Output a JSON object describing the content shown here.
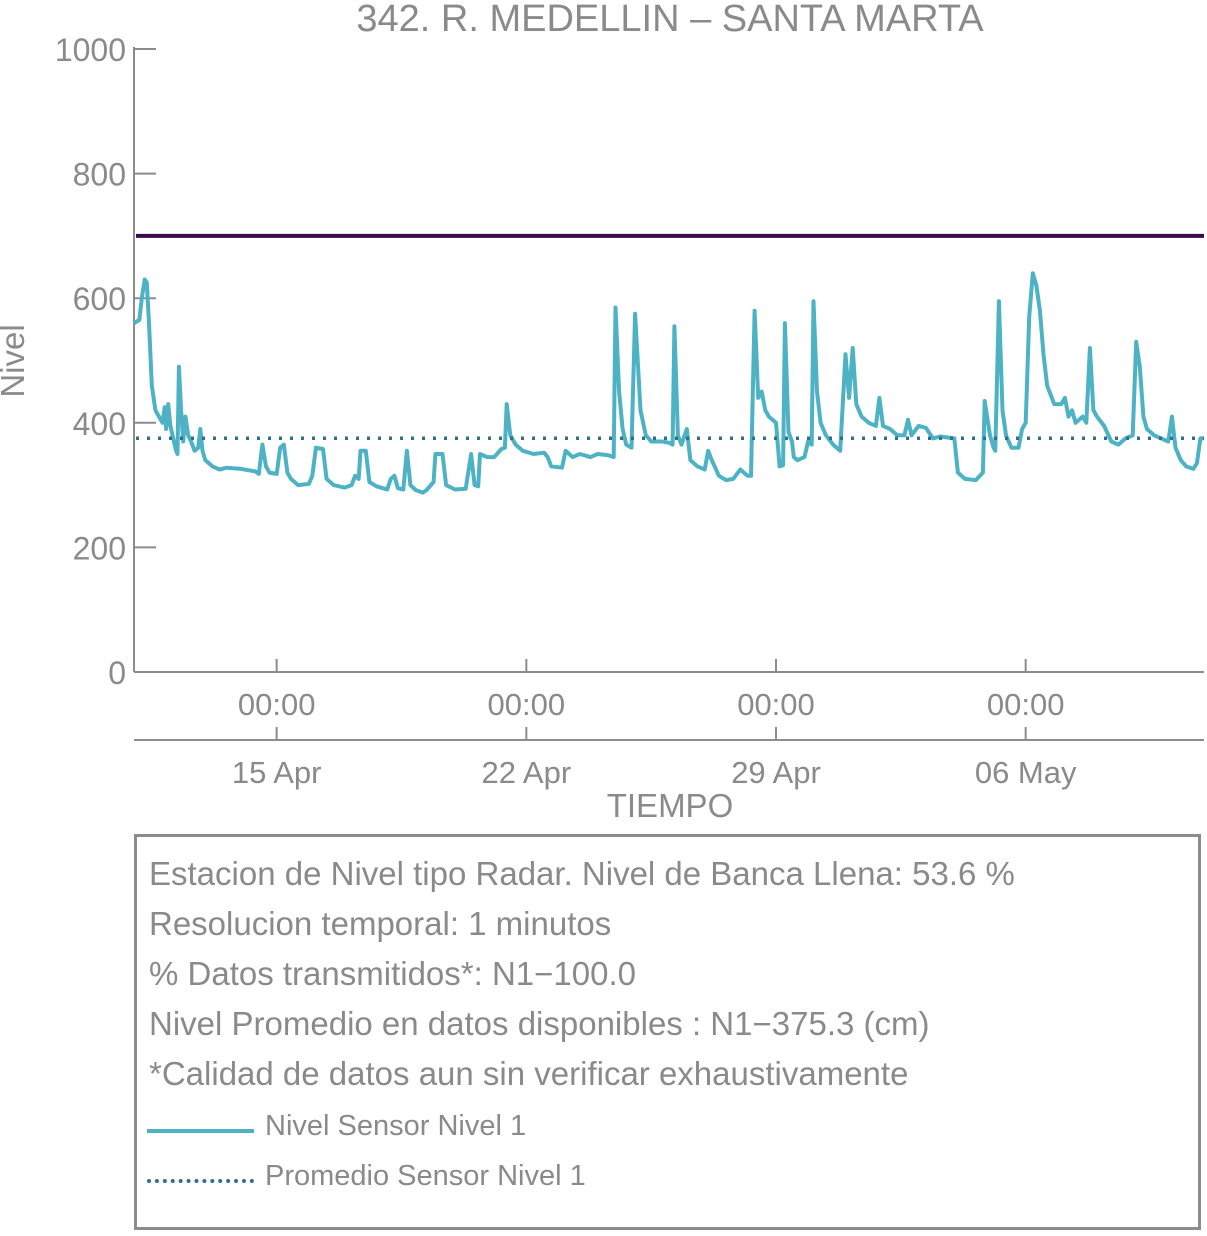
{
  "chart_data": {
    "type": "line",
    "title": "342. R. MEDELLIN – SANTA MARTA",
    "xlabel": "TIEMPO",
    "ylabel": "Nivel",
    "ylim": [
      0,
      1000
    ],
    "yticks": [
      "0",
      "200",
      "400",
      "600",
      "800",
      "1000"
    ],
    "xlim_days": [
      0,
      30
    ],
    "x_time_ticks": [
      {
        "day": 4,
        "label": "00:00"
      },
      {
        "day": 11,
        "label": "00:00"
      },
      {
        "day": 18,
        "label": "00:00"
      },
      {
        "day": 25,
        "label": "00:00"
      }
    ],
    "x_date_ticks": [
      {
        "day": 4,
        "label": "15 Apr"
      },
      {
        "day": 11,
        "label": "22 Apr"
      },
      {
        "day": 18,
        "label": "29 Apr"
      },
      {
        "day": 25,
        "label": "06 May"
      }
    ],
    "bankfull_level": 700,
    "bankfull_color": "#3d0a4f",
    "series": [
      {
        "name": "Nivel Sensor Nivel 1",
        "style": "solid",
        "color": "#4db3c4",
        "points": [
          [
            0.0,
            560
          ],
          [
            0.15,
            565
          ],
          [
            0.22,
            600
          ],
          [
            0.3,
            630
          ],
          [
            0.36,
            625
          ],
          [
            0.42,
            560
          ],
          [
            0.5,
            460
          ],
          [
            0.6,
            420
          ],
          [
            0.7,
            410
          ],
          [
            0.8,
            400
          ],
          [
            0.86,
            425
          ],
          [
            0.9,
            390
          ],
          [
            0.96,
            430
          ],
          [
            1.02,
            395
          ],
          [
            1.1,
            375
          ],
          [
            1.18,
            355
          ],
          [
            1.22,
            350
          ],
          [
            1.26,
            490
          ],
          [
            1.32,
            420
          ],
          [
            1.38,
            370
          ],
          [
            1.44,
            410
          ],
          [
            1.52,
            380
          ],
          [
            1.6,
            370
          ],
          [
            1.7,
            355
          ],
          [
            1.8,
            360
          ],
          [
            1.86,
            390
          ],
          [
            1.92,
            355
          ],
          [
            2.0,
            340
          ],
          [
            2.2,
            330
          ],
          [
            2.4,
            325
          ],
          [
            2.6,
            328
          ],
          [
            3.0,
            326
          ],
          [
            3.4,
            322
          ],
          [
            3.5,
            318
          ],
          [
            3.6,
            365
          ],
          [
            3.7,
            330
          ],
          [
            3.8,
            320
          ],
          [
            4.0,
            318
          ],
          [
            4.1,
            360
          ],
          [
            4.2,
            365
          ],
          [
            4.3,
            320
          ],
          [
            4.4,
            310
          ],
          [
            4.6,
            300
          ],
          [
            4.9,
            302
          ],
          [
            5.0,
            315
          ],
          [
            5.1,
            360
          ],
          [
            5.3,
            358
          ],
          [
            5.4,
            310
          ],
          [
            5.6,
            300
          ],
          [
            5.9,
            296
          ],
          [
            6.1,
            300
          ],
          [
            6.2,
            315
          ],
          [
            6.3,
            310
          ],
          [
            6.35,
            355
          ],
          [
            6.5,
            355
          ],
          [
            6.6,
            305
          ],
          [
            6.8,
            298
          ],
          [
            7.1,
            293
          ],
          [
            7.2,
            310
          ],
          [
            7.3,
            315
          ],
          [
            7.4,
            295
          ],
          [
            7.55,
            293
          ],
          [
            7.65,
            355
          ],
          [
            7.75,
            300
          ],
          [
            7.9,
            292
          ],
          [
            8.1,
            288
          ],
          [
            8.2,
            292
          ],
          [
            8.4,
            305
          ],
          [
            8.45,
            350
          ],
          [
            8.65,
            350
          ],
          [
            8.75,
            300
          ],
          [
            9.0,
            293
          ],
          [
            9.3,
            294
          ],
          [
            9.45,
            350
          ],
          [
            9.55,
            300
          ],
          [
            9.65,
            298
          ],
          [
            9.7,
            350
          ],
          [
            9.9,
            345
          ],
          [
            10.1,
            345
          ],
          [
            10.3,
            358
          ],
          [
            10.4,
            360
          ],
          [
            10.45,
            430
          ],
          [
            10.55,
            380
          ],
          [
            10.7,
            365
          ],
          [
            10.9,
            355
          ],
          [
            11.2,
            350
          ],
          [
            11.5,
            352
          ],
          [
            11.6,
            345
          ],
          [
            11.7,
            330
          ],
          [
            12.0,
            328
          ],
          [
            12.1,
            355
          ],
          [
            12.3,
            345
          ],
          [
            12.5,
            350
          ],
          [
            12.8,
            345
          ],
          [
            13.0,
            350
          ],
          [
            13.3,
            348
          ],
          [
            13.45,
            345
          ],
          [
            13.5,
            585
          ],
          [
            13.6,
            450
          ],
          [
            13.7,
            390
          ],
          [
            13.8,
            365
          ],
          [
            13.95,
            360
          ],
          [
            14.05,
            575
          ],
          [
            14.2,
            420
          ],
          [
            14.35,
            380
          ],
          [
            14.5,
            370
          ],
          [
            14.8,
            370
          ],
          [
            15.0,
            368
          ],
          [
            15.1,
            365
          ],
          [
            15.15,
            555
          ],
          [
            15.25,
            380
          ],
          [
            15.35,
            365
          ],
          [
            15.5,
            390
          ],
          [
            15.6,
            340
          ],
          [
            15.8,
            330
          ],
          [
            16.0,
            325
          ],
          [
            16.1,
            355
          ],
          [
            16.2,
            340
          ],
          [
            16.4,
            315
          ],
          [
            16.6,
            308
          ],
          [
            16.8,
            310
          ],
          [
            17.0,
            325
          ],
          [
            17.2,
            315
          ],
          [
            17.3,
            315
          ],
          [
            17.4,
            580
          ],
          [
            17.5,
            440
          ],
          [
            17.6,
            450
          ],
          [
            17.7,
            420
          ],
          [
            17.8,
            410
          ],
          [
            18.0,
            400
          ],
          [
            18.1,
            330
          ],
          [
            18.2,
            332
          ],
          [
            18.25,
            560
          ],
          [
            18.35,
            385
          ],
          [
            18.45,
            370
          ],
          [
            18.5,
            345
          ],
          [
            18.6,
            340
          ],
          [
            18.8,
            345
          ],
          [
            18.9,
            370
          ],
          [
            19.0,
            365
          ],
          [
            19.05,
            595
          ],
          [
            19.15,
            450
          ],
          [
            19.25,
            400
          ],
          [
            19.4,
            380
          ],
          [
            19.6,
            365
          ],
          [
            19.8,
            355
          ],
          [
            19.95,
            510
          ],
          [
            20.05,
            440
          ],
          [
            20.15,
            520
          ],
          [
            20.25,
            430
          ],
          [
            20.4,
            410
          ],
          [
            20.6,
            400
          ],
          [
            20.8,
            395
          ],
          [
            20.9,
            440
          ],
          [
            21.0,
            395
          ],
          [
            21.2,
            390
          ],
          [
            21.4,
            380
          ],
          [
            21.6,
            380
          ],
          [
            21.7,
            405
          ],
          [
            21.8,
            380
          ],
          [
            22.0,
            395
          ],
          [
            22.2,
            392
          ],
          [
            22.4,
            375
          ],
          [
            22.6,
            378
          ],
          [
            23.0,
            375
          ],
          [
            23.1,
            320
          ],
          [
            23.3,
            310
          ],
          [
            23.6,
            308
          ],
          [
            23.8,
            320
          ],
          [
            23.85,
            435
          ],
          [
            24.0,
            380
          ],
          [
            24.1,
            360
          ],
          [
            24.15,
            355
          ],
          [
            24.25,
            595
          ],
          [
            24.35,
            420
          ],
          [
            24.45,
            380
          ],
          [
            24.6,
            360
          ],
          [
            24.8,
            360
          ],
          [
            24.9,
            390
          ],
          [
            25.0,
            400
          ],
          [
            25.1,
            570
          ],
          [
            25.2,
            640
          ],
          [
            25.3,
            620
          ],
          [
            25.4,
            580
          ],
          [
            25.5,
            510
          ],
          [
            25.6,
            460
          ],
          [
            25.8,
            430
          ],
          [
            26.0,
            430
          ],
          [
            26.1,
            440
          ],
          [
            26.2,
            410
          ],
          [
            26.3,
            420
          ],
          [
            26.4,
            400
          ],
          [
            26.6,
            410
          ],
          [
            26.7,
            400
          ],
          [
            26.8,
            520
          ],
          [
            26.9,
            420
          ],
          [
            27.0,
            410
          ],
          [
            27.2,
            395
          ],
          [
            27.4,
            370
          ],
          [
            27.6,
            365
          ],
          [
            27.8,
            375
          ],
          [
            28.0,
            380
          ],
          [
            28.1,
            530
          ],
          [
            28.2,
            490
          ],
          [
            28.3,
            410
          ],
          [
            28.4,
            390
          ],
          [
            28.6,
            380
          ],
          [
            28.8,
            375
          ],
          [
            29.0,
            370
          ],
          [
            29.1,
            410
          ],
          [
            29.2,
            360
          ],
          [
            29.35,
            340
          ],
          [
            29.5,
            330
          ],
          [
            29.7,
            326
          ],
          [
            29.8,
            335
          ],
          [
            29.9,
            375
          ],
          [
            30.0,
            375
          ]
        ]
      },
      {
        "name": "Promedio Sensor Nivel 1",
        "style": "dotted",
        "color": "#2f6f8f",
        "constant": 375.3
      }
    ]
  },
  "info": {
    "line1": "Estacion de Nivel tipo Radar. Nivel de Banca Llena: 53.6 %",
    "line2": "Resolucion temporal: 1 minutos",
    "line3": "% Datos transmitidos*: N1−100.0",
    "line4": "Nivel Promedio en datos disponibles : N1−375.3 (cm)",
    "line5": "*Calidad de datos aun sin verificar exhaustivamente"
  },
  "legend": {
    "item1": "Nivel Sensor Nivel 1",
    "item2": "Promedio Sensor Nivel 1"
  }
}
